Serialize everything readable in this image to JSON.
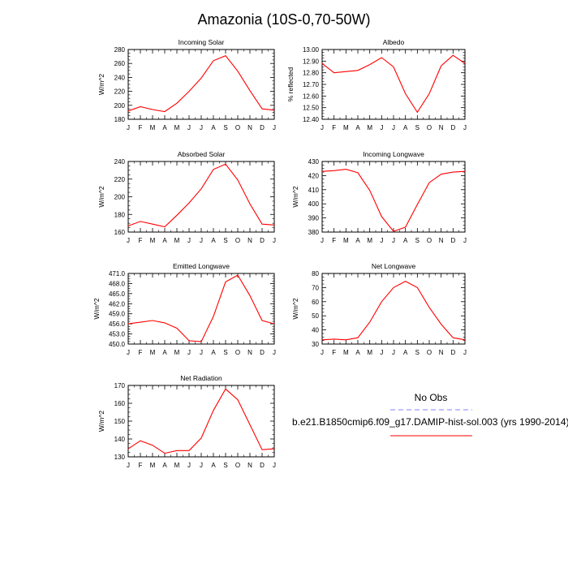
{
  "figure": {
    "title": "Amazonia (10S-0,70-50W)"
  },
  "months": [
    "J",
    "F",
    "M",
    "A",
    "M",
    "J",
    "J",
    "A",
    "S",
    "O",
    "N",
    "D",
    "J"
  ],
  "chart_data": [
    {
      "type": "line",
      "title": "Incoming Solar",
      "ylabel": "W/m^2",
      "ylim": [
        180,
        280
      ],
      "yticks": [
        "180",
        "200",
        "220",
        "240",
        "260",
        "280"
      ],
      "x": [
        "J",
        "F",
        "M",
        "A",
        "M",
        "J",
        "J",
        "A",
        "S",
        "O",
        "N",
        "D",
        "J"
      ],
      "series": [
        {
          "values": [
            192,
            198,
            194,
            191,
            203,
            220,
            239,
            264,
            271,
            249,
            221,
            195,
            193
          ]
        }
      ]
    },
    {
      "type": "line",
      "title": "Albedo",
      "ylabel": "% reflected",
      "ylim": [
        12.4,
        13.0
      ],
      "yticks": [
        "12.40",
        "12.50",
        "12.60",
        "12.70",
        "12.80",
        "12.90",
        "13.00"
      ],
      "x": [
        "J",
        "F",
        "M",
        "A",
        "M",
        "J",
        "J",
        "A",
        "S",
        "O",
        "N",
        "D",
        "J"
      ],
      "series": [
        {
          "values": [
            12.88,
            12.8,
            12.81,
            12.82,
            12.87,
            12.93,
            12.85,
            12.62,
            12.46,
            12.62,
            12.86,
            12.95,
            12.88
          ]
        }
      ]
    },
    {
      "type": "line",
      "title": "Absorbed Solar",
      "ylabel": "W/m^2",
      "ylim": [
        160,
        240
      ],
      "yticks": [
        "160",
        "180",
        "200",
        "220",
        "240"
      ],
      "x": [
        "J",
        "F",
        "M",
        "A",
        "M",
        "J",
        "J",
        "A",
        "S",
        "O",
        "N",
        "D",
        "J"
      ],
      "series": [
        {
          "values": [
            167,
            172,
            169,
            166,
            179,
            193,
            209,
            231,
            237,
            219,
            192,
            169,
            168
          ]
        }
      ]
    },
    {
      "type": "line",
      "title": "Incoming Longwave",
      "ylabel": "W/m^2",
      "ylim": [
        380,
        430
      ],
      "yticks": [
        "380",
        "390",
        "400",
        "410",
        "420",
        "430"
      ],
      "x": [
        "J",
        "F",
        "M",
        "A",
        "M",
        "J",
        "J",
        "A",
        "S",
        "O",
        "N",
        "D",
        "J"
      ],
      "series": [
        {
          "values": [
            423,
            423.5,
            424.5,
            422,
            409.5,
            391,
            380.5,
            383.5,
            399.5,
            415,
            421,
            422.5,
            423
          ]
        }
      ]
    },
    {
      "type": "line",
      "title": "Emitted Longwave",
      "ylabel": "W/m^2",
      "ylim": [
        450,
        471
      ],
      "yticks": [
        "450.0",
        "453.0",
        "456.0",
        "459.0",
        "462.0",
        "465.0",
        "468.0",
        "471.0"
      ],
      "x": [
        "J",
        "F",
        "M",
        "A",
        "M",
        "J",
        "J",
        "A",
        "S",
        "O",
        "N",
        "D",
        "J"
      ],
      "series": [
        {
          "values": [
            456.0,
            456.5,
            457.0,
            456.3,
            454.7,
            451.0,
            450.7,
            458.2,
            468.5,
            470.5,
            464.4,
            457.0,
            456.0
          ]
        }
      ]
    },
    {
      "type": "line",
      "title": "Net Longwave",
      "ylabel": "W/m^2",
      "ylim": [
        30,
        80
      ],
      "yticks": [
        "30",
        "40",
        "50",
        "60",
        "70",
        "80"
      ],
      "x": [
        "J",
        "F",
        "M",
        "A",
        "M",
        "J",
        "J",
        "A",
        "S",
        "O",
        "N",
        "D",
        "J"
      ],
      "series": [
        {
          "values": [
            33,
            33.5,
            33,
            34.5,
            45.5,
            60,
            70,
            74.5,
            70,
            56,
            44,
            34.5,
            33
          ]
        }
      ]
    },
    {
      "type": "line",
      "title": "Net Radiation",
      "ylabel": "W/m^2",
      "ylim": [
        130,
        170
      ],
      "yticks": [
        "130",
        "140",
        "150",
        "160",
        "170"
      ],
      "x": [
        "J",
        "F",
        "M",
        "A",
        "M",
        "J",
        "J",
        "A",
        "S",
        "O",
        "N",
        "D",
        "J"
      ],
      "series": [
        {
          "values": [
            134.5,
            139,
            136.5,
            132,
            133.5,
            133.5,
            140.5,
            156,
            168,
            162,
            148,
            134,
            134.5
          ]
        }
      ]
    }
  ],
  "legend": {
    "obs_label": "No Obs",
    "model_label": "b.e21.B1850cmip6.f09_g17.DAMIP-hist-sol.003 (yrs 1990-2014)",
    "obs_color": "#8080ff",
    "model_color": "#ff0000"
  },
  "colors": {
    "line": "#ff0000",
    "axis": "#000000"
  }
}
